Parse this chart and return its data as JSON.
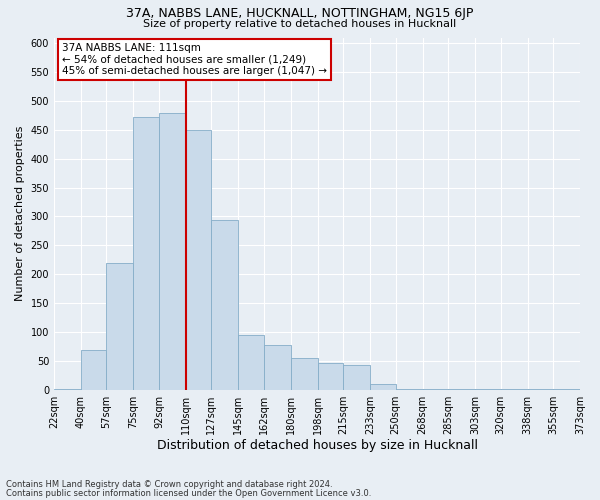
{
  "title1": "37A, NABBS LANE, HUCKNALL, NOTTINGHAM, NG15 6JP",
  "title2": "Size of property relative to detached houses in Hucknall",
  "xlabel": "Distribution of detached houses by size in Hucknall",
  "ylabel": "Number of detached properties",
  "footnote1": "Contains HM Land Registry data © Crown copyright and database right 2024.",
  "footnote2": "Contains public sector information licensed under the Open Government Licence v3.0.",
  "annotation_title": "37A NABBS LANE: 111sqm",
  "annotation_line1": "← 54% of detached houses are smaller (1,249)",
  "annotation_line2": "45% of semi-detached houses are larger (1,047) →",
  "bar_color": "#c9daea",
  "bar_edge_color": "#85adc8",
  "vline_x": 110,
  "vline_color": "#cc0000",
  "bin_edges": [
    22,
    40,
    57,
    75,
    92,
    110,
    127,
    145,
    162,
    180,
    198,
    215,
    233,
    250,
    268,
    285,
    303,
    320,
    338,
    355,
    373
  ],
  "bin_labels": [
    "22sqm",
    "40sqm",
    "57sqm",
    "75sqm",
    "92sqm",
    "110sqm",
    "127sqm",
    "145sqm",
    "162sqm",
    "180sqm",
    "198sqm",
    "215sqm",
    "233sqm",
    "250sqm",
    "268sqm",
    "285sqm",
    "303sqm",
    "320sqm",
    "338sqm",
    "355sqm",
    "373sqm"
  ],
  "heights_per_bin": [
    2,
    68,
    220,
    473,
    480,
    450,
    294,
    95,
    78,
    55,
    47,
    42,
    10,
    2,
    2,
    2,
    2,
    2,
    2,
    2
  ],
  "ylim": [
    0,
    610
  ],
  "yticks": [
    0,
    50,
    100,
    150,
    200,
    250,
    300,
    350,
    400,
    450,
    500,
    550,
    600
  ],
  "background_color": "#e8eef4",
  "grid_color": "#ffffff",
  "annotation_box_color": "#ffffff",
  "annotation_box_edge": "#cc0000",
  "title1_fontsize": 9,
  "title2_fontsize": 8,
  "ylabel_fontsize": 8,
  "xlabel_fontsize": 9,
  "tick_fontsize": 7,
  "footnote_fontsize": 6,
  "annotation_fontsize": 7.5
}
